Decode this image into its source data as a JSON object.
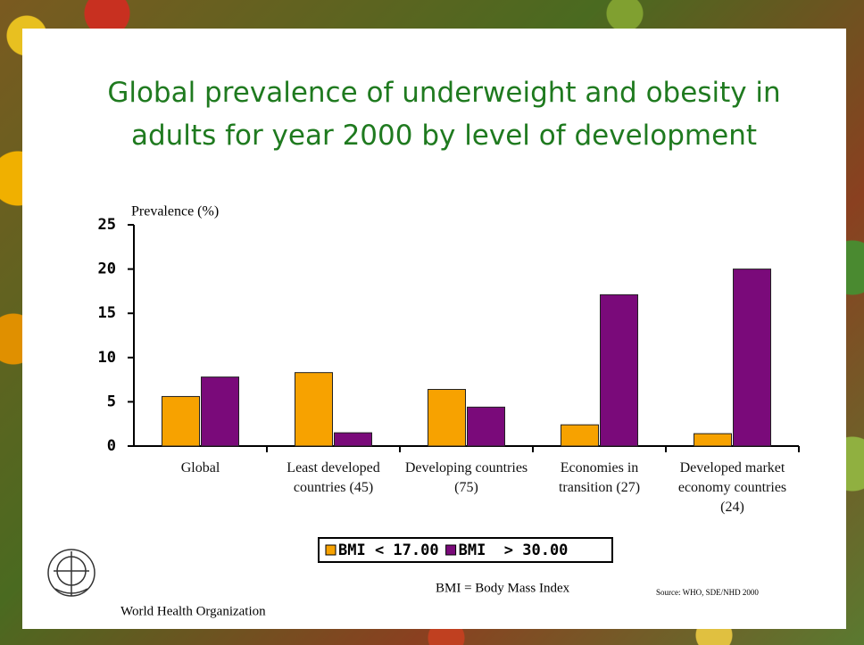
{
  "chart_data": {
    "type": "bar",
    "title": "Global  prevalence of underweight and obesity in adults for year 2000 by level of development",
    "y_label": "Prevalence (%)",
    "categories": [
      "Global",
      "Least developed countries (45)",
      "Developing countries (75)",
      "Economies in transition (27)",
      "Developed market economy countries (24)"
    ],
    "series": [
      {
        "name": "BMI < 17.00",
        "color": "#f7a200",
        "values": [
          5.6,
          8.3,
          6.4,
          2.4,
          1.4
        ]
      },
      {
        "name": "BMI  > 30.00",
        "color": "#7a0a7a",
        "values": [
          7.8,
          1.5,
          4.4,
          17.1,
          20.0
        ]
      }
    ],
    "ylim": [
      0,
      25
    ],
    "yticks": [
      0,
      5,
      10,
      15,
      20,
      25
    ],
    "grid": false
  },
  "footer": {
    "note": "BMI = Body Mass Index",
    "source": "Source: WHO, SDE/NHD 2000",
    "organization": "World Health Organization"
  }
}
